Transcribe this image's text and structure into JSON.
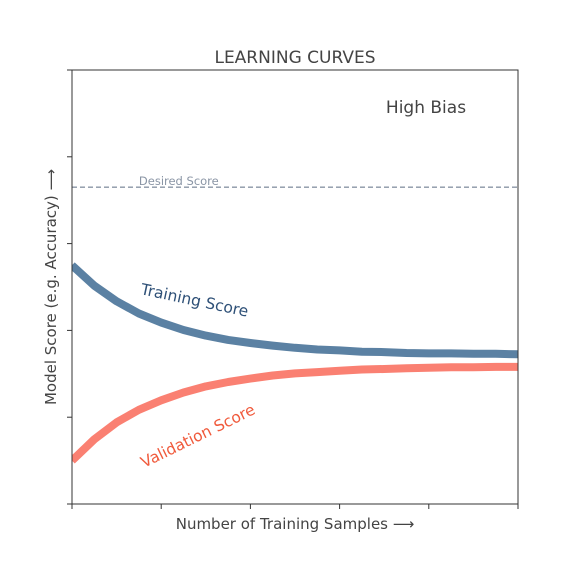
{
  "chart_data": {
    "type": "line",
    "title": "LEARNING CURVES",
    "xlabel": "Number of Training Samples  ⟶",
    "ylabel": "Model Score (e.g. Accuracy)  ⟶",
    "annotation": "High Bias",
    "xlim": [
      0,
      10
    ],
    "ylim": [
      0,
      10
    ],
    "grid": false,
    "x_ticks": [
      0,
      2,
      4,
      6,
      8,
      10
    ],
    "y_ticks": [
      0,
      2,
      4,
      6,
      8,
      10
    ],
    "reference_line": {
      "label": "Desired Score",
      "y": 7.3,
      "color": "#8a95a5"
    },
    "series": [
      {
        "name": "Training Score",
        "color": "#5b81a3",
        "label_color": "#2e5077",
        "x": [
          0,
          0.5,
          1,
          1.5,
          2,
          2.5,
          3,
          3.5,
          4,
          4.5,
          5,
          5.5,
          6,
          6.5,
          7,
          7.5,
          8,
          8.5,
          9,
          9.5,
          10
        ],
        "y": [
          5.5,
          5.03,
          4.67,
          4.39,
          4.18,
          4.01,
          3.88,
          3.78,
          3.71,
          3.65,
          3.6,
          3.56,
          3.54,
          3.51,
          3.5,
          3.48,
          3.47,
          3.47,
          3.46,
          3.46,
          3.45
        ]
      },
      {
        "name": "Validation Score",
        "color": "#fa8072",
        "label_color": "#f05a3c",
        "x": [
          0,
          0.5,
          1,
          1.5,
          2,
          2.5,
          3,
          3.5,
          4,
          4.5,
          5,
          5.5,
          6,
          6.5,
          7,
          7.5,
          8,
          8.5,
          9,
          9.5,
          10
        ],
        "y": [
          1.0,
          1.49,
          1.88,
          2.17,
          2.39,
          2.57,
          2.71,
          2.81,
          2.89,
          2.96,
          3.01,
          3.04,
          3.07,
          3.1,
          3.11,
          3.13,
          3.14,
          3.15,
          3.15,
          3.16,
          3.16
        ]
      }
    ]
  }
}
